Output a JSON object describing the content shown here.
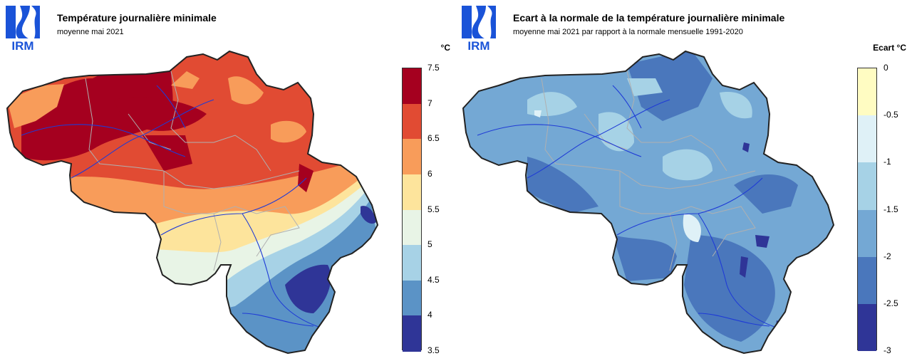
{
  "colors": {
    "logo_blue": "#1a53d8",
    "border": "#222222",
    "rivers": "#1f3bd6",
    "admin": "#b0b0b0"
  },
  "left": {
    "logo_text": "IRM",
    "title": "Température journalière minimale",
    "subtitle": "moyenne mai 2021",
    "unit": "°C",
    "legend": {
      "ticks": [
        "7.5",
        "7",
        "6.5",
        "6",
        "5.5",
        "5",
        "4.5",
        "4",
        "3.5"
      ],
      "colors": [
        "#a5001f",
        "#e14b33",
        "#f89c5a",
        "#fde49c",
        "#e8f4e6",
        "#a7d2e6",
        "#5b93c6",
        "#2f3597"
      ]
    }
  },
  "right": {
    "logo_text": "IRM",
    "title": "Ecart à la normale de la température journalière minimale",
    "subtitle": "moyenne mai 2021 par rapport à la normale mensuelle 1991-2020",
    "unit": "Ecart  °C",
    "legend": {
      "ticks": [
        "0",
        "-0.5",
        "-1",
        "-1.5",
        "-2",
        "-2.5",
        "-3"
      ],
      "colors": [
        "#fffcc2",
        "#dff1f7",
        "#a6d2e6",
        "#74a8d4",
        "#4a77bc",
        "#2f3597"
      ]
    }
  }
}
